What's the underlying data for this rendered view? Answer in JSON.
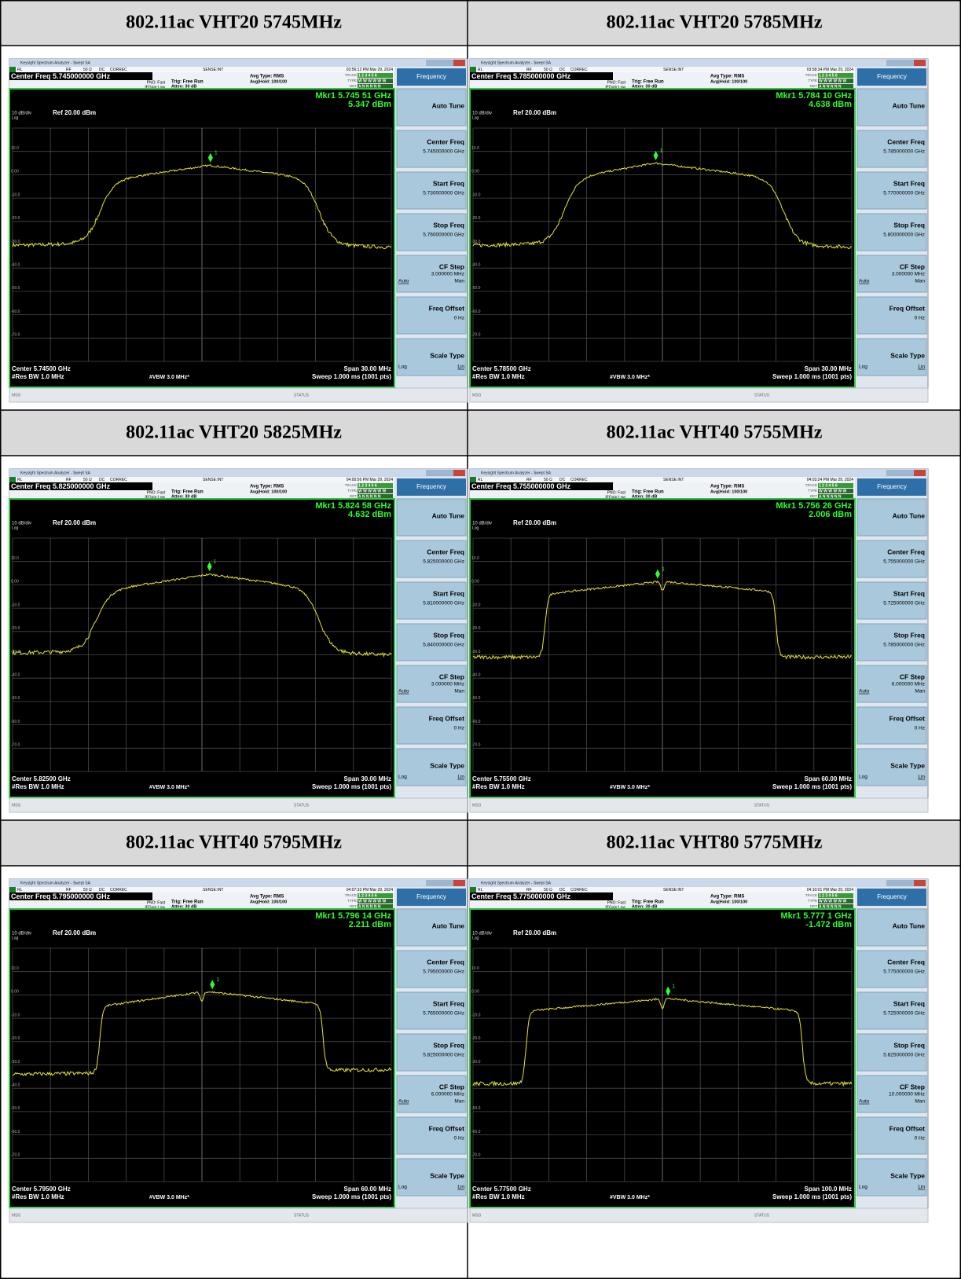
{
  "common": {
    "window_title": "Keysight Spectrum Analyzer - Swept SA",
    "rl": "RL",
    "rf": "RF",
    "ohm": "50 Ω",
    "dc": "DC",
    "correc": "CORREC",
    "sense": "SENSE:INT",
    "avg_type": "Avg Type: RMS",
    "avg_hold": "Avg|Hold: 100/100",
    "pno": "PNO: Fast",
    "ifgain": "IFGain:Low",
    "trig": "Trig: Free Run",
    "atten": "Atten: 30 dB",
    "trace": "TRACE",
    "trace_row": "1 2 3 4 5 6",
    "type": "TYPE",
    "type_row": "W W W W W W",
    "det": "DET",
    "det_row": "A N N N N N",
    "scale": "10 dB/div",
    "ref": "Ref 20.00 dBm",
    "log": "Log",
    "y_labels": [
      "10.0",
      "0.00",
      "-10.0",
      "-20.0",
      "-30.0",
      "-40.0",
      "-50.0",
      "-60.0",
      "-70.0"
    ],
    "marker_number": "1",
    "res_bw": "#Res BW 1.0 MHz",
    "vbw": "#VBW 3.0 MHz*",
    "sweep": "Sweep  1.000 ms (1001 pts)",
    "msg": "MSG",
    "status": "STATUS",
    "frequency": "Frequency",
    "auto_tune": "Auto Tune",
    "center_freq": "Center Freq",
    "start_freq": "Start Freq",
    "stop_freq": "Stop Freq",
    "cf_step": "CF Step",
    "auto": "Auto",
    "man": "Man",
    "freq_offset": "Freq Offset",
    "zero_hz": "0 Hz",
    "scale_type": "Scale Type",
    "lin": "Lin"
  },
  "panels": [
    {
      "heading": "802.11ac VHT20 5745MHz",
      "timestamp": "03:56:12 PM Mar 29, 2024",
      "center_freq": "Center Freq 5.745000000 GHz",
      "marker_freq": "Mkr1 5.745 51 GHz",
      "marker_level": "5.347 dBm",
      "center": "Center 5.74500 GHz",
      "span": "Span 30.00 MHz",
      "key_center": "5.745000000 GHz",
      "key_start": "5.730000000 GHz",
      "key_stop": "5.760000000 GHz",
      "key_step": "3.000000 MHz"
    },
    {
      "heading": "802.11ac VHT20 5785MHz",
      "timestamp": "03:58:34 PM Mar 29, 2024",
      "center_freq": "Center Freq 5.785000000 GHz",
      "marker_freq": "Mkr1 5.784 10 GHz",
      "marker_level": "4.638 dBm",
      "center": "Center 5.78500 GHz",
      "span": "Span 30.00 MHz",
      "key_center": "5.785000000 GHz",
      "key_start": "5.770000000 GHz",
      "key_stop": "5.800000000 GHz",
      "key_step": "3.000000 MHz"
    },
    {
      "heading": "802.11ac VHT20 5825MHz",
      "timestamp": "04:00:56 PM Mar 29, 2024",
      "center_freq": "Center Freq 5.825000000 GHz",
      "marker_freq": "Mkr1 5.824 58 GHz",
      "marker_level": "4.632 dBm",
      "center": "Center 5.82500 GHz",
      "span": "Span 30.00 MHz",
      "key_center": "5.825000000 GHz",
      "key_start": "5.810000000 GHz",
      "key_stop": "5.840000000 GHz",
      "key_step": "3.000000 MHz"
    },
    {
      "heading": "802.11ac VHT40 5755MHz",
      "timestamp": "04:03:24 PM Mar 29, 2024",
      "center_freq": "Center Freq 5.755000000 GHz",
      "marker_freq": "Mkr1 5.756 26 GHz",
      "marker_level": "2.006 dBm",
      "center": "Center 5.75500 GHz",
      "span": "Span 60.00 MHz",
      "key_center": "5.755000000 GHz",
      "key_start": "5.725000000 GHz",
      "key_stop": "5.785000000 GHz",
      "key_step": "6.000000 MHz"
    },
    {
      "heading": "802.11ac VHT40 5795MHz",
      "timestamp": "04:07:33 PM Mar 29, 2024",
      "center_freq": "Center Freq 5.795000000 GHz",
      "marker_freq": "Mkr1 5.796 14 GHz",
      "marker_level": "2.211 dBm",
      "center": "Center 5.79500 GHz",
      "span": "Span 60.00 MHz",
      "key_center": "5.795000000 GHz",
      "key_start": "5.765000000 GHz",
      "key_stop": "5.825000000 GHz",
      "key_step": "6.000000 MHz"
    },
    {
      "heading": "802.11ac VHT80 5775MHz",
      "timestamp": "04:10:01 PM Mar 29, 2024",
      "center_freq": "Center Freq 5.775000000 GHz",
      "marker_freq": "Mkr1 5.777 1 GHz",
      "marker_level": "-1.472 dBm",
      "center": "Center 5.77500 GHz",
      "span": "Span 100.0 MHz",
      "key_center": "5.775000000 GHz",
      "key_start": "5.725000000 GHz",
      "key_stop": "5.825000000 GHz",
      "key_step": "10.000000 MHz"
    }
  ]
}
